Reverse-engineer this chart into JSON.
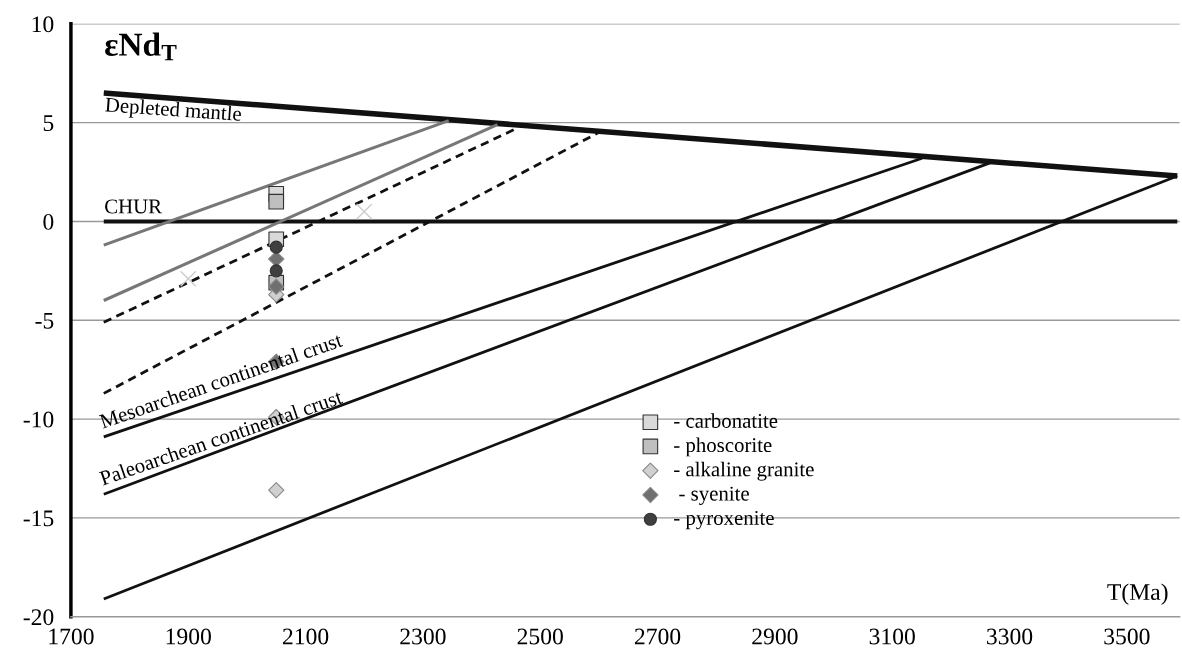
{
  "chart_data": {
    "type": "line",
    "title": "εNd$_{T}$",
    "xlabel": "T(Ma)",
    "xlim": [
      1700,
      3590
    ],
    "xticks": [
      1700,
      1900,
      2100,
      2300,
      2500,
      2700,
      2900,
      3100,
      3300,
      3500
    ],
    "ylim": [
      -20,
      10
    ],
    "yticks": [
      -20,
      -15,
      -10,
      -5,
      0,
      5,
      10
    ],
    "grid": "y",
    "legend": "bottom right",
    "series": [
      {
        "color": "#111111",
        "line_style": "solid",
        "x": [
          1756,
          3586
        ],
        "values": [
          6.5,
          2.3
        ]
      },
      {
        "color": "#111111",
        "line_style": "solid",
        "x": [
          1756,
          3586
        ],
        "values": [
          0,
          0
        ]
      },
      {
        "color": "#777777",
        "line_style": "solid",
        "x": [
          1756,
          2344
        ],
        "values": [
          -1.2,
          5.1
        ]
      },
      {
        "color": "#777777",
        "line_style": "solid",
        "x": [
          1756,
          2427
        ],
        "values": [
          -4.0,
          4.9
        ]
      },
      {
        "color": "#111111",
        "line_style": "dashed",
        "x": [
          1756,
          2463
        ],
        "values": [
          -5.1,
          4.75
        ]
      },
      {
        "color": "#111111",
        "line_style": "dashed",
        "x": [
          1756,
          2603
        ],
        "values": [
          -8.7,
          4.55
        ]
      },
      {
        "color": "#111111",
        "line_style": "solid",
        "x": [
          1756,
          3151
        ],
        "values": [
          -10.9,
          3.2
        ]
      },
      {
        "color": "#111111",
        "line_style": "solid",
        "x": [
          1756,
          3270
        ],
        "values": [
          -13.8,
          3.0
        ]
      },
      {
        "color": "#111111",
        "line_style": "solid",
        "x": [
          1756,
          3586
        ],
        "values": [
          -19.1,
          2.3
        ]
      },
      {
        "type": "scatter",
        "marker": "cross",
        "color": "#cccccc",
        "x": [
          1900,
          2200
        ],
        "values": [
          -2.9,
          0.5
        ]
      },
      {
        "type": "scatter",
        "name": "- carbonatite",
        "marker": "square",
        "color": "#d9d9d9",
        "x": [
          2050,
          2050
        ],
        "values": [
          1.4,
          -0.9
        ]
      },
      {
        "type": "scatter",
        "name": "- phoscorite",
        "marker": "square",
        "color": "#bfbfbf",
        "x": [
          2050,
          2050
        ],
        "values": [
          1.0,
          -3.1
        ]
      },
      {
        "type": "scatter",
        "name": "- alkaline granite",
        "marker": "diamond",
        "color": "#d0d0d0",
        "x": [
          2050,
          2050,
          2050
        ],
        "values": [
          -3.7,
          -9.9,
          -13.6
        ]
      },
      {
        "type": "scatter",
        "name": " - syenite",
        "marker": "diamond",
        "color": "#707070",
        "x": [
          2050,
          2050,
          2050
        ],
        "values": [
          -1.9,
          -3.3,
          -7.1
        ]
      },
      {
        "type": "scatter",
        "name": "- pyroxenite",
        "marker": "circle",
        "color": "#404040",
        "x": [
          2050,
          2050
        ],
        "values": [
          -1.3,
          -2.5
        ]
      }
    ],
    "annotations": [
      "Depleted mantle",
      "CHUR",
      "Mesoarchean continental crust",
      "Paleoarchean continental crust"
    ]
  }
}
